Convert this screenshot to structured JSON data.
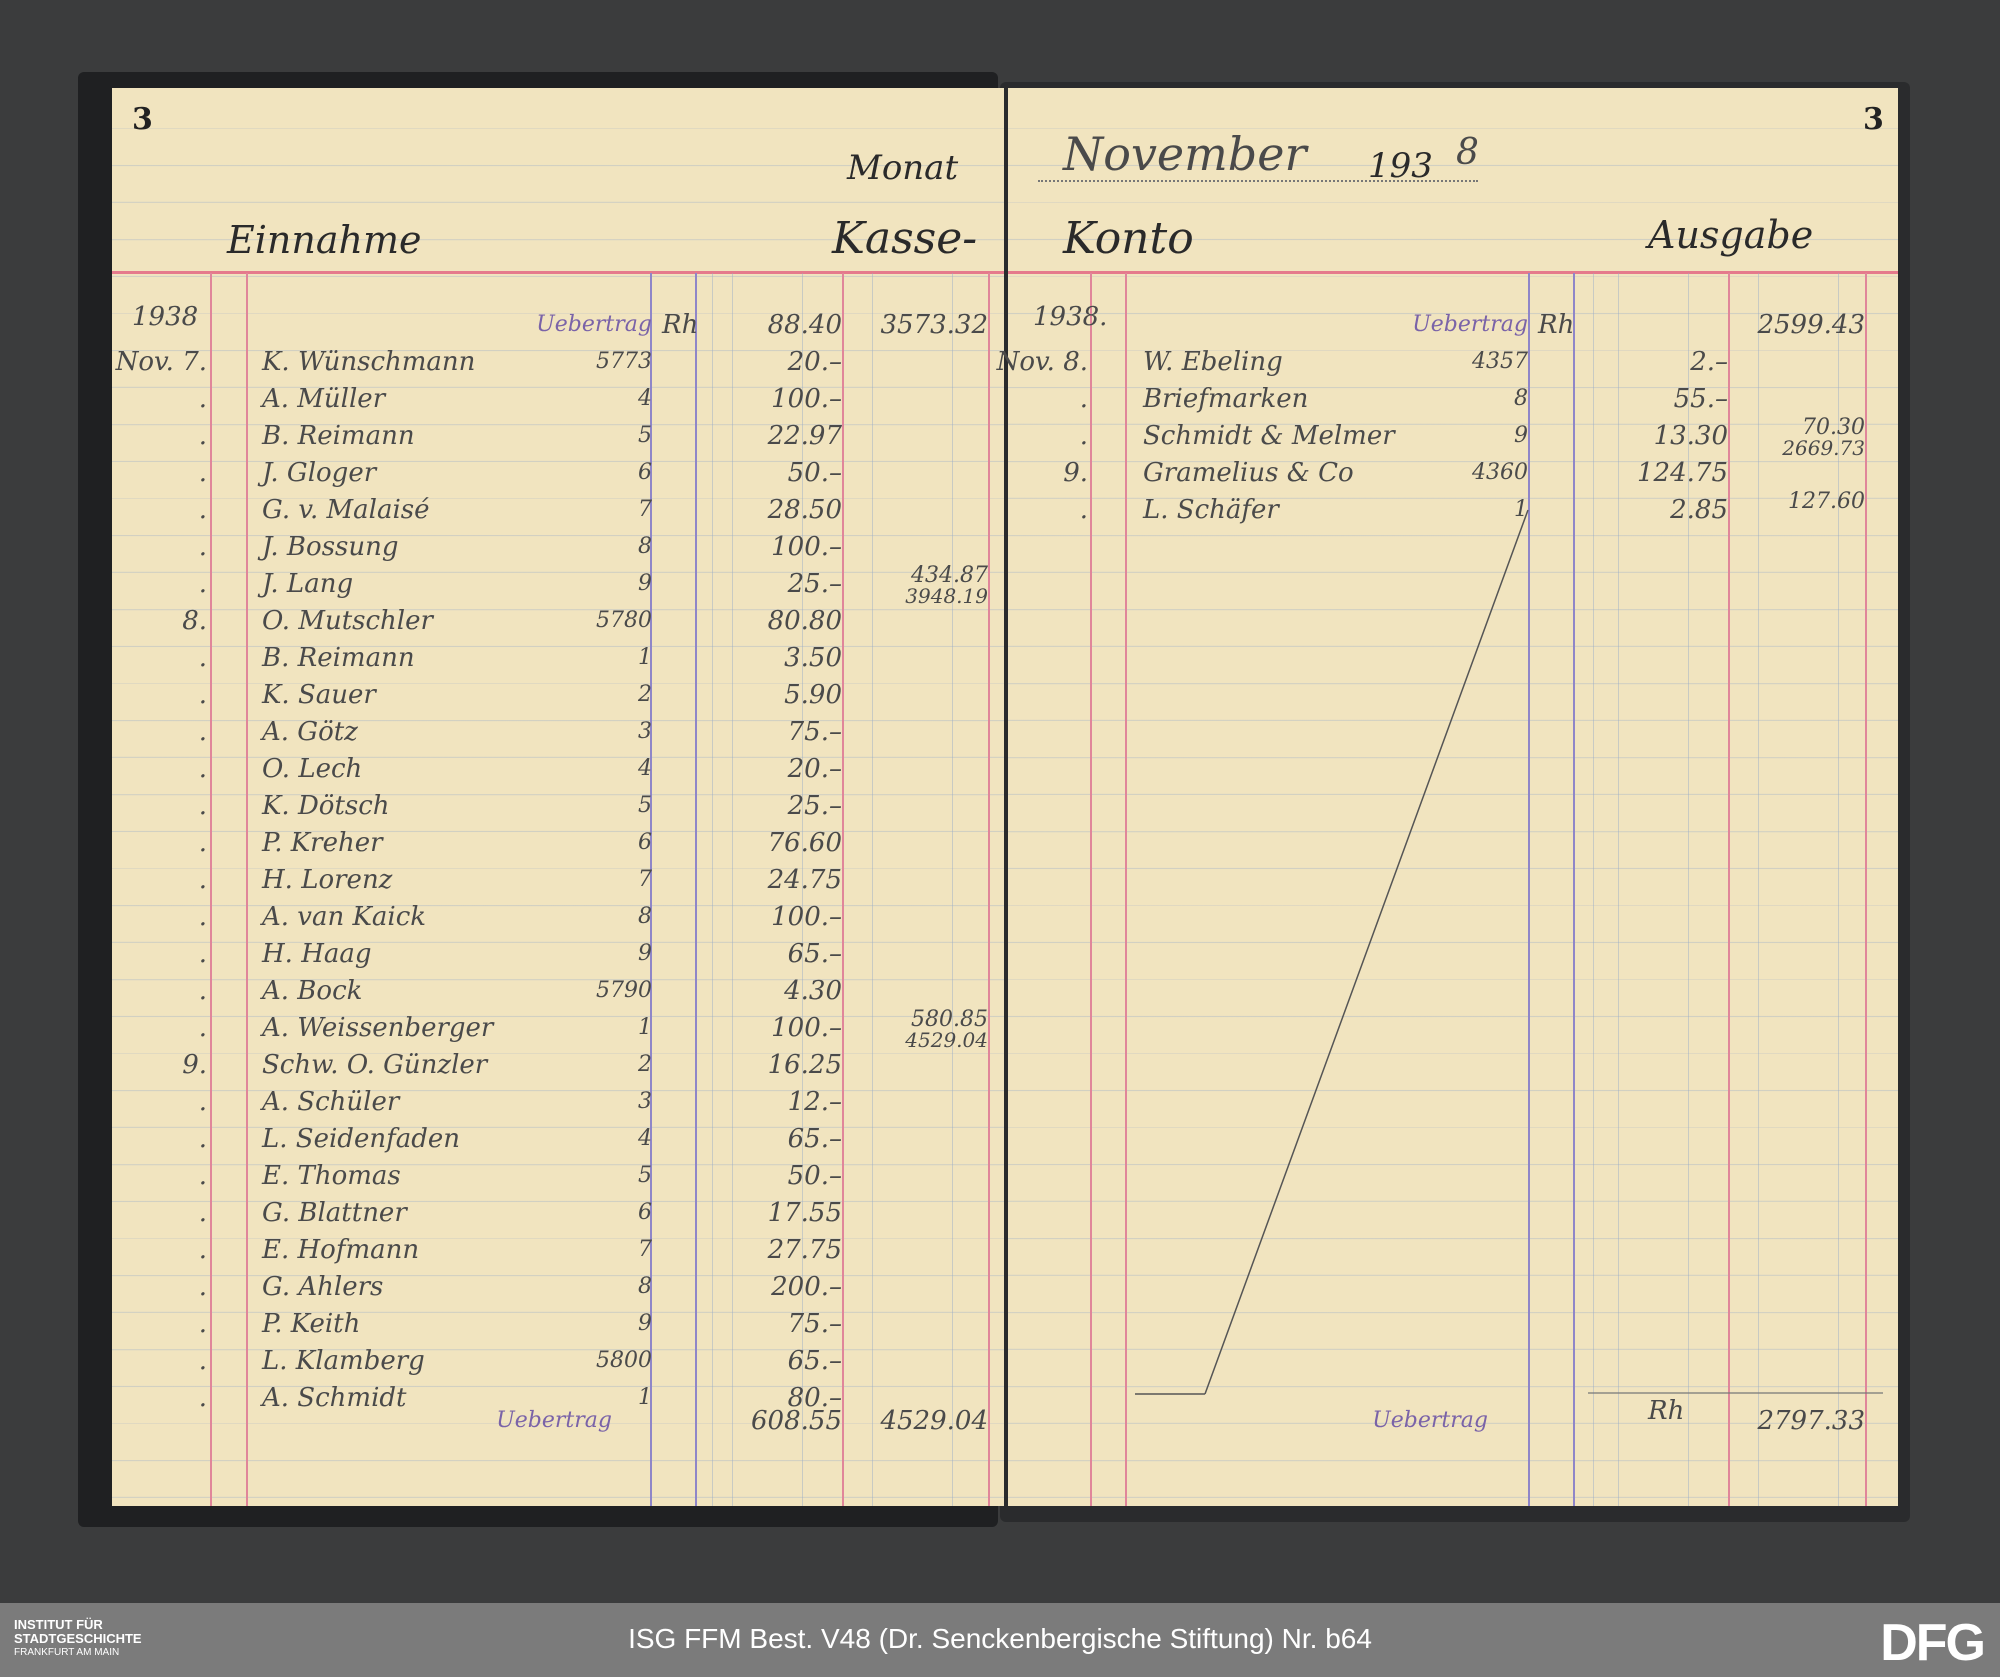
{
  "left_page": {
    "page_number": "3",
    "title_left": "Einnahme",
    "monat_label": "Monat",
    "kasse_label": "Kasse-",
    "carry": {
      "year": "1938",
      "label": "Uebertrag",
      "currency": "Rh",
      "amount": "88.40",
      "total": "3573.32"
    },
    "rows": [
      {
        "date": "Nov. 7.",
        "name": "K. Wünschmann",
        "folio": "5773",
        "amount": "20.–"
      },
      {
        "date": ".",
        "name": "A. Müller",
        "folio": "4",
        "amount": "100.–"
      },
      {
        "date": ".",
        "name": "B. Reimann",
        "folio": "5",
        "amount": "22.97"
      },
      {
        "date": ".",
        "name": "J. Gloger",
        "folio": "6",
        "amount": "50.–"
      },
      {
        "date": ".",
        "name": "G. v. Malaisé",
        "folio": "7",
        "amount": "28.50"
      },
      {
        "date": ".",
        "name": "J. Bossung",
        "folio": "8",
        "amount": "100.–"
      },
      {
        "date": ".",
        "name": "J. Lang",
        "folio": "9",
        "amount": "25.–",
        "total": "434.87",
        "running": "3948.19"
      },
      {
        "date": "8.",
        "name": "O. Mutschler",
        "folio": "5780",
        "amount": "80.80"
      },
      {
        "date": ".",
        "name": "B. Reimann",
        "folio": "1",
        "amount": "3.50"
      },
      {
        "date": ".",
        "name": "K. Sauer",
        "folio": "2",
        "amount": "5.90"
      },
      {
        "date": ".",
        "name": "A. Götz",
        "folio": "3",
        "amount": "75.–"
      },
      {
        "date": ".",
        "name": "O. Lech",
        "folio": "4",
        "amount": "20.–"
      },
      {
        "date": ".",
        "name": "K. Dötsch",
        "folio": "5",
        "amount": "25.–"
      },
      {
        "date": ".",
        "name": "P. Kreher",
        "folio": "6",
        "amount": "76.60"
      },
      {
        "date": ".",
        "name": "H. Lorenz",
        "folio": "7",
        "amount": "24.75"
      },
      {
        "date": ".",
        "name": "A. van Kaick",
        "folio": "8",
        "amount": "100.–"
      },
      {
        "date": ".",
        "name": "H. Haag",
        "folio": "9",
        "amount": "65.–"
      },
      {
        "date": ".",
        "name": "A. Bock",
        "folio": "5790",
        "amount": "4.30"
      },
      {
        "date": ".",
        "name": "A. Weissenberger",
        "folio": "1",
        "amount": "100.–",
        "total": "580.85",
        "running": "4529.04"
      },
      {
        "date": "9.",
        "name": "Schw. O. Günzler",
        "folio": "2",
        "amount": "16.25"
      },
      {
        "date": ".",
        "name": "A. Schüler",
        "folio": "3",
        "amount": "12.–"
      },
      {
        "date": ".",
        "name": "L. Seidenfaden",
        "folio": "4",
        "amount": "65.–"
      },
      {
        "date": ".",
        "name": "E. Thomas",
        "folio": "5",
        "amount": "50.–"
      },
      {
        "date": ".",
        "name": "G. Blattner",
        "folio": "6",
        "amount": "17.55"
      },
      {
        "date": ".",
        "name": "E. Hofmann",
        "folio": "7",
        "amount": "27.75"
      },
      {
        "date": ".",
        "name": "G. Ahlers",
        "folio": "8",
        "amount": "200.–"
      },
      {
        "date": ".",
        "name": "P. Keith",
        "folio": "9",
        "amount": "75.–"
      },
      {
        "date": ".",
        "name": "L. Klamberg",
        "folio": "5800",
        "amount": "65.–"
      },
      {
        "date": ".",
        "name": "A. Schmidt",
        "folio": "1",
        "amount": "80.–"
      }
    ],
    "footer": {
      "label": "Uebertrag",
      "amount": "608.55",
      "total": "4529.04"
    }
  },
  "right_page": {
    "page_number": "3",
    "month": "November",
    "year_printed": "193",
    "year_written": "8",
    "konto_label": "Konto",
    "title_right": "Ausgabe",
    "carry": {
      "year": "1938.",
      "label": "Uebertrag",
      "currency": "Rh",
      "total": "2599.43"
    },
    "rows": [
      {
        "date": "Nov. 8.",
        "name": "W. Ebeling",
        "folio": "4357",
        "amount": "2.–"
      },
      {
        "date": ".",
        "name": "Briefmarken",
        "folio": "8",
        "amount": "55.–"
      },
      {
        "date": ".",
        "name": "Schmidt & Melmer",
        "folio": "9",
        "amount": "13.30",
        "total": "70.30",
        "running": "2669.73"
      },
      {
        "date": "9.",
        "name": "Gramelius & Co",
        "folio": "4360",
        "amount": "124.75"
      },
      {
        "date": ".",
        "name": "L. Schäfer",
        "folio": "1",
        "amount": "2.85",
        "total": "127.60"
      }
    ],
    "footer": {
      "label": "Uebertrag",
      "currency": "Rh",
      "total": "2797.33"
    }
  },
  "footer_bar": {
    "institution_line1": "INSTITUT FÜR",
    "institution_line2": "STADTGESCHICHTE",
    "institution_line3": "FRANKFURT AM MAIN",
    "caption": "ISG FFM Best. V48 (Dr. Senckenbergische Stiftung) Nr. b64",
    "logo": "DFG"
  }
}
